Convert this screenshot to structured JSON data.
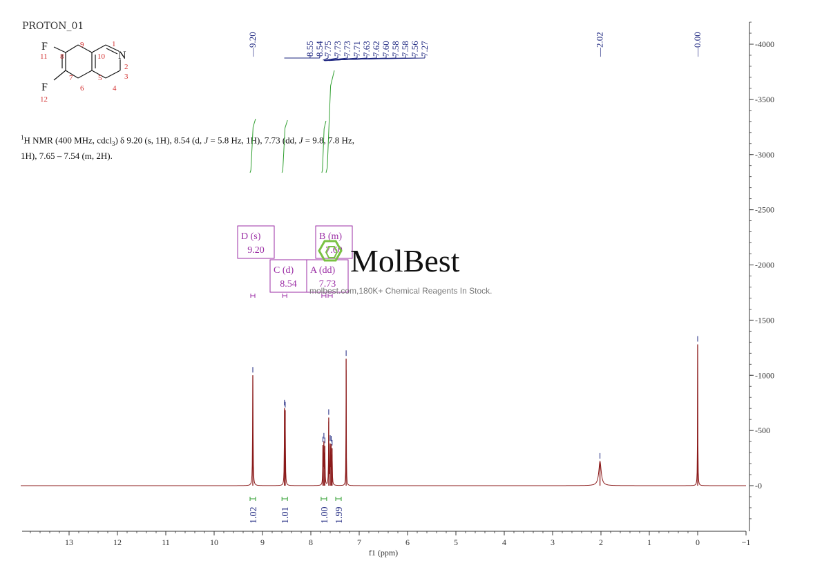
{
  "sample_name": "PROTON_01",
  "molecule": {
    "atoms": [
      {
        "symbol": "F",
        "number": "11"
      },
      {
        "symbol": "F",
        "number": "12"
      },
      {
        "symbol": "N",
        "number": "2"
      }
    ],
    "ring_numbers": [
      "1",
      "3",
      "4",
      "5",
      "6",
      "7",
      "8",
      "9",
      "10"
    ]
  },
  "nmr_description": {
    "nucleus_prefix": "1",
    "p1": "H NMR (400 MHz, cdcl",
    "sub": "3",
    "p2": ") δ 9.20 (s, 1H), 8.54 (d, ",
    "j1": "J",
    "p3": " = 5.8 Hz, 1H), 7.73 (dd, ",
    "j2": "J",
    "p4": " = 9.8, 7.8 Hz,",
    "p5": "1H), 7.65 – 7.54 (m, 2H)."
  },
  "watermark": {
    "brand": "MolBest",
    "tagline": "molbest.com,180K+ Chemical Reagents In Stock."
  },
  "colors": {
    "spectrum": "#8b1a1a",
    "integral": "#2e9e2e",
    "peak_label": "#1a237e",
    "multiplet": "#9b2ea5",
    "logo": "#7ac143"
  },
  "chart_data": {
    "type": "line",
    "xlabel": "f1 (ppm)",
    "xlim": [
      14,
      -1
    ],
    "x_ticks": [
      13,
      12,
      11,
      10,
      9,
      8,
      7,
      6,
      5,
      4,
      3,
      2,
      1,
      0,
      -1
    ],
    "x_tick_labels": [
      "13",
      "12",
      "11",
      "10",
      "9",
      "8",
      "7",
      "6",
      "5",
      "4",
      "3",
      "2",
      "1",
      "0",
      "−1"
    ],
    "ylim": [
      -400,
      4250
    ],
    "y_ticks": [
      4000,
      3500,
      3000,
      2500,
      2000,
      1500,
      1000,
      500,
      0
    ],
    "y_tick_labels": [
      "4000",
      "3500",
      "3000",
      "2500",
      "2000",
      "1500",
      "1000",
      "500",
      "0"
    ],
    "peaks": [
      {
        "ppm": 9.2,
        "height": 1000,
        "width": 0.006
      },
      {
        "ppm": 8.545,
        "height": 640,
        "width": 0.005
      },
      {
        "ppm": 8.53,
        "height": 620,
        "width": 0.005
      },
      {
        "ppm": 7.75,
        "height": 340,
        "width": 0.005
      },
      {
        "ppm": 7.73,
        "height": 360,
        "width": 0.005
      },
      {
        "ppm": 7.71,
        "height": 330,
        "width": 0.005
      },
      {
        "ppm": 7.63,
        "height": 600,
        "width": 0.005
      },
      {
        "ppm": 7.6,
        "height": 340,
        "width": 0.005
      },
      {
        "ppm": 7.58,
        "height": 330,
        "width": 0.005
      },
      {
        "ppm": 7.56,
        "height": 310,
        "width": 0.005
      },
      {
        "ppm": 7.27,
        "height": 1150,
        "width": 0.004
      },
      {
        "ppm": 2.02,
        "height": 220,
        "width": 0.03
      },
      {
        "ppm": 0.0,
        "height": 1280,
        "width": 0.004
      }
    ],
    "peak_labels": {
      "groups": [
        {
          "center_ppm": 9.2,
          "labels": [
            "9.20"
          ]
        },
        {
          "center_ppm": 8.545,
          "labels": [
            "8.55",
            "8.54"
          ]
        },
        {
          "center_ppm": 7.51,
          "labels": [
            "7.75",
            "7.73",
            "7.73",
            "7.71",
            "7.63",
            "7.62",
            "7.60",
            "7.58",
            "7.58",
            "7.56",
            "7.27"
          ]
        },
        {
          "center_ppm": 2.02,
          "labels": [
            "2.02"
          ]
        },
        {
          "center_ppm": 0.0,
          "labels": [
            "0.00"
          ]
        }
      ]
    },
    "multiplets": [
      {
        "letter": "D",
        "type": "(s)",
        "ppm_text": "9.20",
        "ppm": 9.2
      },
      {
        "letter": "C",
        "type": "(d)",
        "ppm_text": "8.54",
        "ppm": 8.54
      },
      {
        "letter": "A",
        "type": "(dd)",
        "ppm_text": "7.73",
        "ppm": 7.73
      },
      {
        "letter": "B",
        "type": "(m)",
        "ppm_text": "7.60",
        "ppm": 7.6
      }
    ],
    "integrals": [
      {
        "ppm": 9.2,
        "value": "1.02"
      },
      {
        "ppm": 8.54,
        "value": "1.01"
      },
      {
        "ppm": 7.73,
        "value": "1.00"
      },
      {
        "ppm": 7.6,
        "value": "1.99"
      }
    ]
  }
}
